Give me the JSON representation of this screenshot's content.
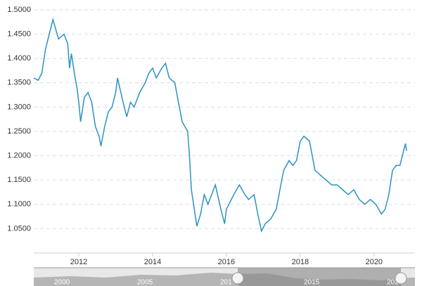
{
  "chart_data": {
    "type": "line",
    "x": [
      2010.78,
      2010.9,
      2011.0,
      2011.1,
      2011.2,
      2011.3,
      2011.45,
      2011.6,
      2011.7,
      2011.75,
      2011.8,
      2011.9,
      2011.95,
      2012.0,
      2012.05,
      2012.15,
      2012.25,
      2012.35,
      2012.45,
      2012.55,
      2012.6,
      2012.7,
      2012.8,
      2012.9,
      2013.0,
      2013.05,
      2013.2,
      2013.3,
      2013.4,
      2013.5,
      2013.65,
      2013.8,
      2013.9,
      2014.0,
      2014.1,
      2014.25,
      2014.35,
      2014.45,
      2014.6,
      2014.7,
      2014.8,
      2014.95,
      2015.0,
      2015.05,
      2015.2,
      2015.3,
      2015.4,
      2015.5,
      2015.6,
      2015.7,
      2015.85,
      2015.95,
      2016.0,
      2016.2,
      2016.35,
      2016.5,
      2016.6,
      2016.75,
      2016.85,
      2016.95,
      2017.05,
      2017.2,
      2017.35,
      2017.45,
      2017.55,
      2017.7,
      2017.8,
      2017.9,
      2018.0,
      2018.1,
      2018.25,
      2018.4,
      2018.55,
      2018.7,
      2018.85,
      2019.0,
      2019.15,
      2019.3,
      2019.45,
      2019.6,
      2019.75,
      2019.9,
      2020.05,
      2020.2,
      2020.3,
      2020.4,
      2020.5,
      2020.6,
      2020.7,
      2020.8,
      2020.85,
      2020.88
    ],
    "series": [
      {
        "color": "#2b93c3",
        "values": [
          1.36,
          1.355,
          1.37,
          1.42,
          1.45,
          1.48,
          1.44,
          1.45,
          1.43,
          1.38,
          1.41,
          1.36,
          1.34,
          1.31,
          1.27,
          1.32,
          1.33,
          1.31,
          1.26,
          1.24,
          1.22,
          1.26,
          1.29,
          1.3,
          1.33,
          1.36,
          1.31,
          1.28,
          1.31,
          1.3,
          1.33,
          1.35,
          1.37,
          1.38,
          1.36,
          1.38,
          1.39,
          1.36,
          1.35,
          1.31,
          1.27,
          1.25,
          1.2,
          1.13,
          1.055,
          1.08,
          1.12,
          1.1,
          1.12,
          1.14,
          1.09,
          1.06,
          1.09,
          1.12,
          1.14,
          1.12,
          1.11,
          1.12,
          1.08,
          1.045,
          1.06,
          1.07,
          1.09,
          1.13,
          1.17,
          1.19,
          1.18,
          1.19,
          1.23,
          1.24,
          1.23,
          1.17,
          1.16,
          1.15,
          1.14,
          1.14,
          1.13,
          1.12,
          1.13,
          1.11,
          1.1,
          1.11,
          1.1,
          1.08,
          1.09,
          1.12,
          1.17,
          1.18,
          1.18,
          1.21,
          1.225,
          1.21
        ]
      }
    ],
    "xlim": [
      2010.78,
      2020.88
    ],
    "xticks": [
      2012,
      2014,
      2016,
      2018,
      2020
    ],
    "ylim": [
      1.0,
      1.5
    ],
    "yticks": [
      {
        "value": 1.05,
        "label": "1.0500"
      },
      {
        "value": 1.1,
        "label": "1.1000"
      },
      {
        "value": 1.15,
        "label": "1.1500"
      },
      {
        "value": 1.2,
        "label": "1.2000"
      },
      {
        "value": 1.25,
        "label": "1.2500"
      },
      {
        "value": 1.3,
        "label": "1.3000"
      },
      {
        "value": 1.35,
        "label": "1.3500"
      },
      {
        "value": 1.4,
        "label": "1.4000"
      },
      {
        "value": 1.45,
        "label": "1.4500"
      },
      {
        "value": 1.5,
        "label": "1.5000"
      }
    ],
    "grid": true,
    "navigator_labels": [
      "2000",
      "2005",
      "201",
      "2015",
      "202"
    ]
  }
}
